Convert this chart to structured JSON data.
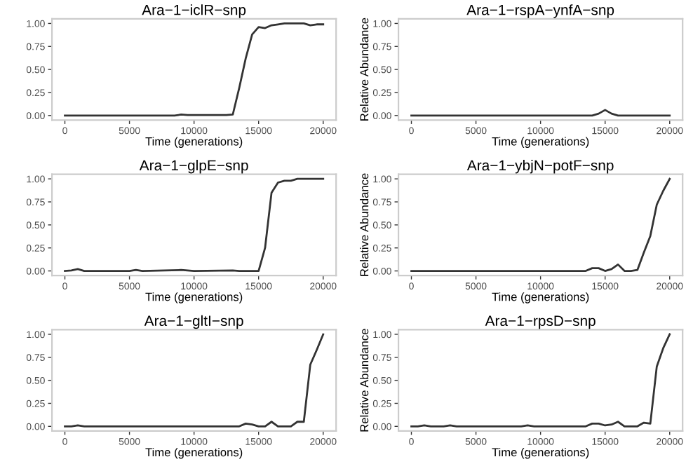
{
  "chart_data": [
    {
      "type": "line",
      "title": "Ara−1−iclR−snp",
      "xlabel": "Time (generations)",
      "color": "#333333",
      "x": [
        0,
        8500,
        9000,
        9500,
        12500,
        13000,
        13500,
        14000,
        14500,
        15000,
        15500,
        16000,
        16500,
        17000,
        18000,
        18500,
        19000,
        19500,
        20000
      ],
      "values": [
        0,
        0,
        0.01,
        0.005,
        0.005,
        0.01,
        0.3,
        0.62,
        0.88,
        0.96,
        0.95,
        0.98,
        0.99,
        1.0,
        1.0,
        1.0,
        0.98,
        0.99,
        0.99
      ],
      "xlim": [
        -1000,
        21000
      ],
      "ylim": [
        -0.05,
        1.05
      ],
      "xticks": [
        0,
        5000,
        10000,
        15000,
        20000
      ],
      "yticks": [
        {
          "value": 0,
          "label": "0.00"
        },
        {
          "value": 0.25,
          "label": "0.25"
        },
        {
          "value": 0.5,
          "label": "0.50"
        },
        {
          "value": 0.75,
          "label": "0.75"
        },
        {
          "value": 1,
          "label": "1.00"
        }
      ]
    },
    {
      "type": "line",
      "title": "Ara−1−rspA−ynfA−snp",
      "xlabel": "Time (generations)",
      "ylabel": "Relative Abundance",
      "color": "#333333",
      "x": [
        0,
        14000,
        14500,
        15000,
        15500,
        16000,
        20000
      ],
      "values": [
        0,
        0,
        0.02,
        0.06,
        0.02,
        0,
        0
      ],
      "xlim": [
        -1000,
        21000
      ],
      "ylim": [
        -0.05,
        1.05
      ],
      "xticks": [
        0,
        5000,
        10000,
        15000,
        20000
      ],
      "yticks": [
        {
          "value": 0,
          "label": "0.00"
        },
        {
          "value": 0.25,
          "label": "0.25"
        },
        {
          "value": 0.5,
          "label": "0.50"
        },
        {
          "value": 0.75,
          "label": "0.75"
        },
        {
          "value": 1,
          "label": "1.00"
        }
      ]
    },
    {
      "type": "line",
      "title": "Ara−1−glpE−snp",
      "xlabel": "Time (generations)",
      "color": "#333333",
      "x": [
        0,
        500,
        1000,
        1500,
        5000,
        5500,
        6000,
        9000,
        9500,
        10000,
        13000,
        13500,
        15000,
        15500,
        16000,
        16500,
        17000,
        17500,
        18000,
        20000
      ],
      "values": [
        0,
        0.005,
        0.02,
        0.0,
        0.0,
        0.01,
        0.0,
        0.01,
        0.005,
        0.0,
        0.005,
        0.0,
        0.0,
        0.25,
        0.85,
        0.96,
        0.98,
        0.98,
        1.0,
        1.0
      ],
      "xlim": [
        -1000,
        21000
      ],
      "ylim": [
        -0.05,
        1.05
      ],
      "xticks": [
        0,
        5000,
        10000,
        15000,
        20000
      ],
      "yticks": [
        {
          "value": 0,
          "label": "0.00"
        },
        {
          "value": 0.25,
          "label": "0.25"
        },
        {
          "value": 0.5,
          "label": "0.50"
        },
        {
          "value": 0.75,
          "label": "0.75"
        },
        {
          "value": 1,
          "label": "1.00"
        }
      ]
    },
    {
      "type": "line",
      "title": "Ara−1−ybjN−potF−snp",
      "xlabel": "Time (generations)",
      "ylabel": "Relative Abundance",
      "color": "#333333",
      "x": [
        0,
        13500,
        14000,
        14500,
        15000,
        15500,
        16000,
        16500,
        17000,
        17500,
        18000,
        18500,
        19000,
        19500,
        20000
      ],
      "values": [
        0,
        0,
        0.03,
        0.03,
        0.0,
        0.02,
        0.07,
        0.0,
        0.0,
        0.01,
        0.2,
        0.38,
        0.72,
        0.87,
        1.0
      ],
      "xlim": [
        -1000,
        21000
      ],
      "ylim": [
        -0.05,
        1.05
      ],
      "xticks": [
        0,
        5000,
        10000,
        15000,
        20000
      ],
      "yticks": [
        {
          "value": 0,
          "label": "0.00"
        },
        {
          "value": 0.25,
          "label": "0.25"
        },
        {
          "value": 0.5,
          "label": "0.50"
        },
        {
          "value": 0.75,
          "label": "0.75"
        },
        {
          "value": 1,
          "label": "1.00"
        }
      ]
    },
    {
      "type": "line",
      "title": "Ara−1−gltI−snp",
      "xlabel": "Time (generations)",
      "color": "#333333",
      "x": [
        0,
        500,
        1000,
        1500,
        13500,
        14000,
        14500,
        15000,
        15500,
        16000,
        16500,
        17000,
        17500,
        18000,
        18500,
        19000,
        19500,
        20000
      ],
      "values": [
        0,
        0,
        0.01,
        0,
        0,
        0.03,
        0.02,
        0.0,
        0.0,
        0.05,
        0.0,
        0.0,
        0.0,
        0.05,
        0.05,
        0.67,
        0.83,
        1.0
      ],
      "xlim": [
        -1000,
        21000
      ],
      "ylim": [
        -0.05,
        1.05
      ],
      "xticks": [
        0,
        5000,
        10000,
        15000,
        20000
      ],
      "yticks": [
        {
          "value": 0,
          "label": "0.00"
        },
        {
          "value": 0.25,
          "label": "0.25"
        },
        {
          "value": 0.5,
          "label": "0.50"
        },
        {
          "value": 0.75,
          "label": "0.75"
        },
        {
          "value": 1,
          "label": "1.00"
        }
      ]
    },
    {
      "type": "line",
      "title": "Ara−1−rpsD−snp",
      "xlabel": "Time (generations)",
      "ylabel": "Relative Abundance",
      "color": "#333333",
      "x": [
        0,
        500,
        1000,
        1500,
        2500,
        3000,
        3500,
        8500,
        9000,
        9500,
        13500,
        14000,
        14500,
        15000,
        15500,
        16000,
        16500,
        17000,
        17500,
        18000,
        18500,
        19000,
        19500,
        20000
      ],
      "values": [
        0,
        0,
        0.01,
        0,
        0,
        0.01,
        0,
        0,
        0.01,
        0,
        0,
        0.03,
        0.03,
        0.01,
        0.02,
        0.05,
        0.0,
        0.0,
        0.0,
        0.04,
        0.03,
        0.65,
        0.85,
        1.0
      ],
      "xlim": [
        -1000,
        21000
      ],
      "ylim": [
        -0.05,
        1.05
      ],
      "xticks": [
        0,
        5000,
        10000,
        15000,
        20000
      ],
      "yticks": [
        {
          "value": 0,
          "label": "0.00"
        },
        {
          "value": 0.25,
          "label": "0.25"
        },
        {
          "value": 0.5,
          "label": "0.50"
        },
        {
          "value": 0.75,
          "label": "0.75"
        },
        {
          "value": 1,
          "label": "1.00"
        }
      ]
    }
  ]
}
